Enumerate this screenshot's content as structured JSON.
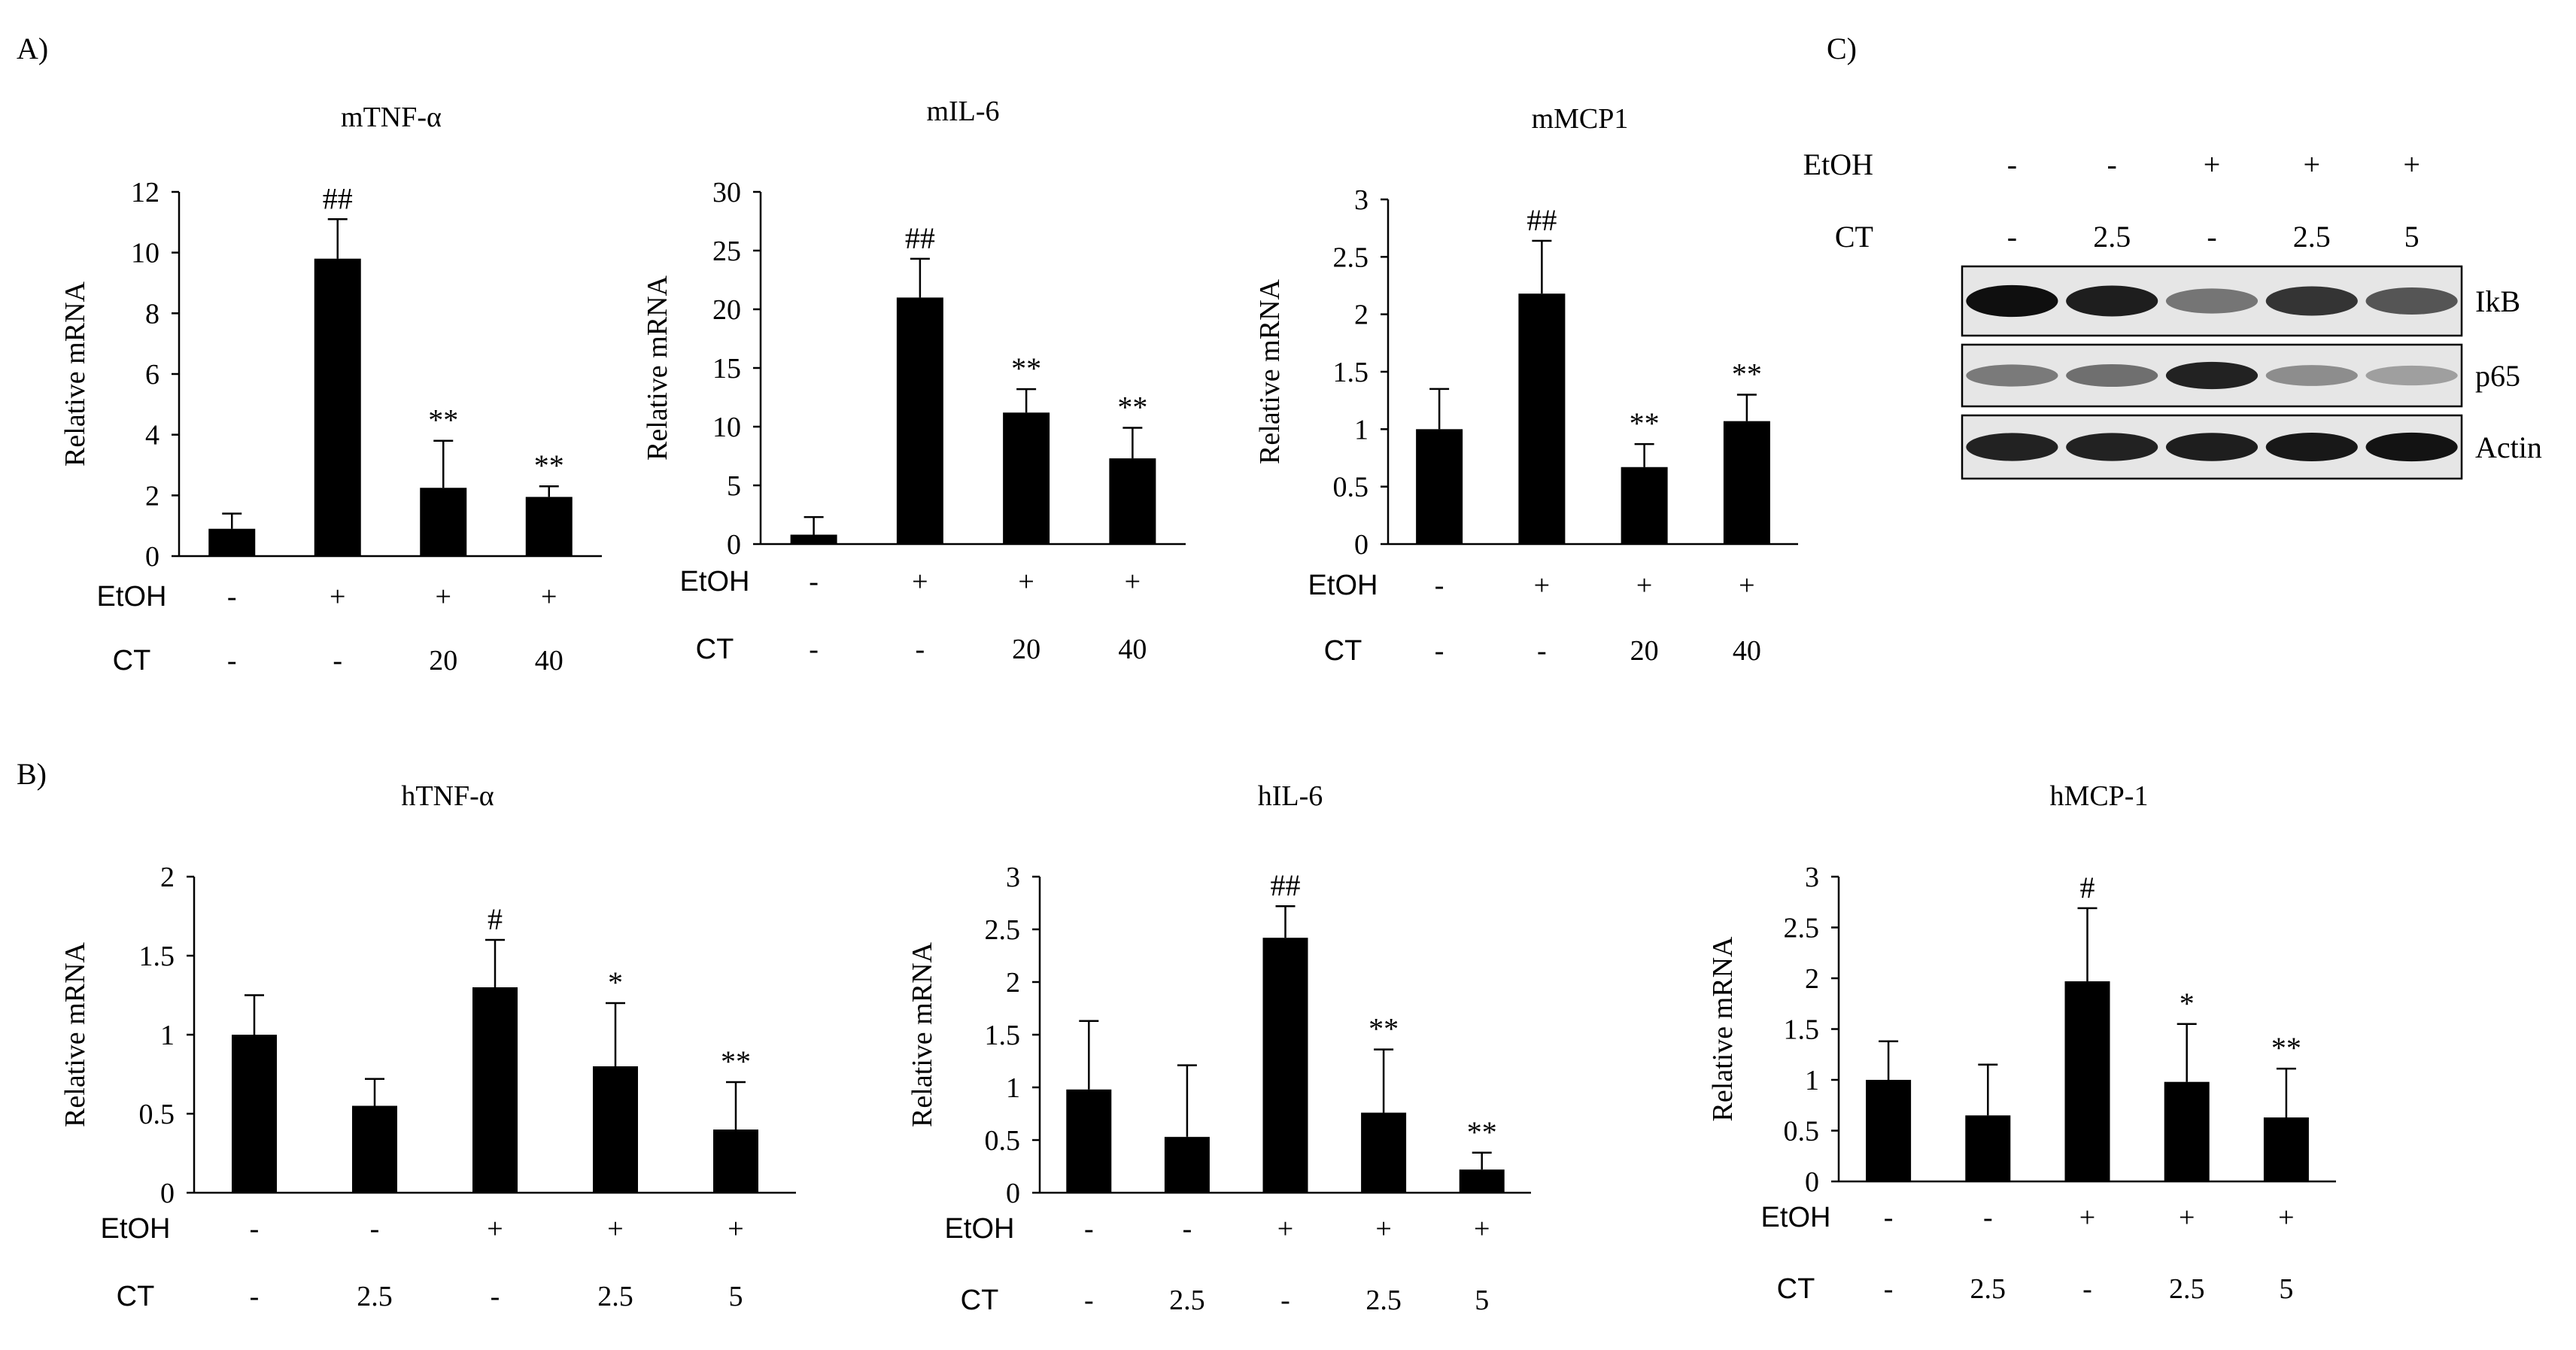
{
  "figure": {
    "panel_labels": {
      "A": "A)",
      "B": "B)",
      "C": "C)"
    }
  },
  "chart_data": [
    {
      "id": "mTNF",
      "type": "bar",
      "title": "mTNF-α",
      "ylabel": "Relative  mRNA",
      "ylim": [
        0,
        12
      ],
      "yticks": [
        0,
        2,
        4,
        6,
        8,
        10,
        12
      ],
      "conditions": [
        {
          "label": "EtOH",
          "values": [
            "-",
            "+",
            "+",
            "+"
          ]
        },
        {
          "label": "CT",
          "values": [
            "-",
            "-",
            "20",
            "40"
          ]
        }
      ],
      "values": [
        0.9,
        9.8,
        2.25,
        1.95
      ],
      "errors": [
        0.5,
        1.3,
        1.55,
        0.35
      ],
      "annotations": [
        "",
        "##",
        "**",
        "**"
      ]
    },
    {
      "id": "mIL6",
      "type": "bar",
      "title": "mIL-6",
      "ylabel": "Relative  mRNA",
      "ylim": [
        0,
        30
      ],
      "yticks": [
        0,
        5,
        10,
        15,
        20,
        25,
        30
      ],
      "conditions": [
        {
          "label": "EtOH",
          "values": [
            "-",
            "+",
            "+",
            "+"
          ]
        },
        {
          "label": "CT",
          "values": [
            "-",
            "-",
            "20",
            "40"
          ]
        }
      ],
      "values": [
        0.8,
        21.0,
        11.2,
        7.3
      ],
      "errors": [
        1.5,
        3.3,
        2.0,
        2.6
      ],
      "annotations": [
        "",
        "##",
        "**",
        "**"
      ]
    },
    {
      "id": "mMCP1",
      "type": "bar",
      "title": "mMCP1",
      "ylabel": "Relative  mRNA",
      "ylim": [
        0,
        3
      ],
      "yticks": [
        0,
        0.5,
        1,
        1.5,
        2,
        2.5,
        3
      ],
      "conditions": [
        {
          "label": "EtOH",
          "values": [
            "-",
            "+",
            "+",
            "+"
          ]
        },
        {
          "label": "CT",
          "values": [
            "-",
            "-",
            "20",
            "40"
          ]
        }
      ],
      "values": [
        1.0,
        2.18,
        0.67,
        1.07
      ],
      "errors": [
        0.35,
        0.46,
        0.2,
        0.23
      ],
      "annotations": [
        "",
        "##",
        "**",
        "**"
      ]
    },
    {
      "id": "hTNF",
      "type": "bar",
      "title": "hTNF-α",
      "ylabel": "Relative  mRNA",
      "ylim": [
        0,
        2
      ],
      "yticks": [
        0,
        0.5,
        1,
        1.5,
        2
      ],
      "conditions": [
        {
          "label": "EtOH",
          "values": [
            "-",
            "-",
            "+",
            "+",
            "+"
          ]
        },
        {
          "label": "CT",
          "values": [
            "-",
            "2.5",
            "-",
            "2.5",
            "5"
          ]
        }
      ],
      "values": [
        1.0,
        0.55,
        1.3,
        0.8,
        0.4
      ],
      "errors": [
        0.25,
        0.17,
        0.3,
        0.4,
        0.3
      ],
      "annotations": [
        "",
        "",
        "#",
        "*",
        "**"
      ]
    },
    {
      "id": "hIL6",
      "type": "bar",
      "title": "hIL-6",
      "ylabel": "Relative  mRNA",
      "ylim": [
        0,
        3
      ],
      "yticks": [
        0,
        0.5,
        1,
        1.5,
        2,
        2.5,
        3
      ],
      "conditions": [
        {
          "label": "EtOH",
          "values": [
            "-",
            "-",
            "+",
            "+",
            "+"
          ]
        },
        {
          "label": "CT",
          "values": [
            "-",
            "2.5",
            "-",
            "2.5",
            "5"
          ]
        }
      ],
      "values": [
        0.98,
        0.53,
        2.42,
        0.76,
        0.22
      ],
      "errors": [
        0.65,
        0.68,
        0.3,
        0.6,
        0.16
      ],
      "annotations": [
        "",
        "",
        "##",
        "**",
        "**"
      ]
    },
    {
      "id": "hMCP1",
      "type": "bar",
      "title": "hMCP-1",
      "ylabel": "Relative  mRNA",
      "ylim": [
        0,
        3
      ],
      "yticks": [
        0,
        0.5,
        1,
        1.5,
        2,
        2.5,
        3
      ],
      "conditions": [
        {
          "label": "EtOH",
          "values": [
            "-",
            "-",
            "+",
            "+",
            "+"
          ]
        },
        {
          "label": "CT",
          "values": [
            "-",
            "2.5",
            "-",
            "2.5",
            "5"
          ]
        }
      ],
      "values": [
        1.0,
        0.65,
        1.97,
        0.98,
        0.63
      ],
      "errors": [
        0.38,
        0.5,
        0.72,
        0.57,
        0.48
      ],
      "annotations": [
        "",
        "",
        "#",
        "*",
        "**"
      ]
    }
  ],
  "western_blot": {
    "conditions": [
      {
        "label": "EtOH",
        "values": [
          "-",
          "-",
          "+",
          "+",
          "+"
        ]
      },
      {
        "label": "CT",
        "values": [
          "-",
          "2.5",
          "-",
          "2.5",
          "5"
        ]
      }
    ],
    "rows": [
      {
        "label": "IkB",
        "intensities": [
          1.0,
          0.92,
          0.45,
          0.8,
          0.62
        ]
      },
      {
        "label": "p65",
        "intensities": [
          0.42,
          0.48,
          0.9,
          0.32,
          0.22
        ]
      },
      {
        "label": "Actin",
        "intensities": [
          0.9,
          0.9,
          0.92,
          0.95,
          0.98
        ]
      }
    ]
  }
}
